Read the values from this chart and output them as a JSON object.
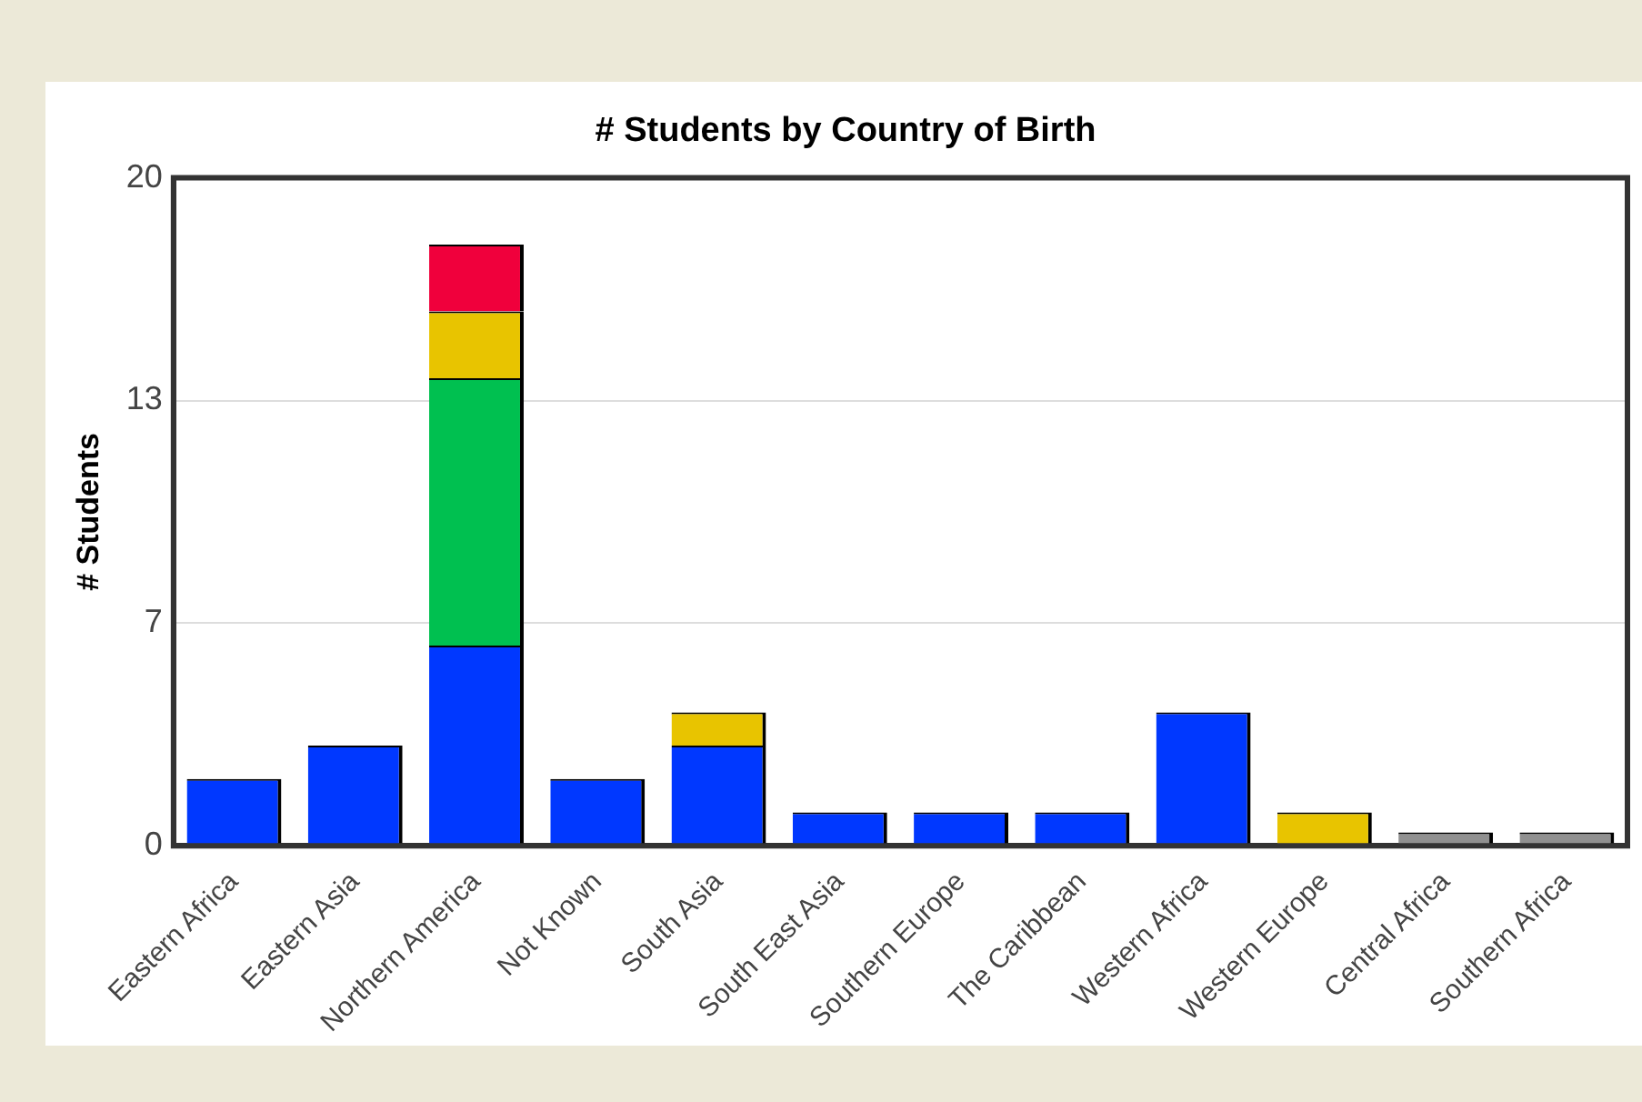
{
  "chart_data": {
    "type": "bar",
    "title": "# Students by Country of Birth",
    "ylabel": "# Students",
    "stacked": true,
    "categories": [
      "Eastern Africa",
      "Eastern Asia",
      "Northern America",
      "Not Known",
      "South Asia",
      "South East Asia",
      "Southern Europe",
      "The Caribbean",
      "Western Africa",
      "Western Europe",
      "Central Africa",
      "Southern Africa"
    ],
    "series": [
      {
        "color": "#0038ff",
        "values": [
          2,
          3,
          6,
          2,
          3,
          1,
          1,
          1,
          4,
          null,
          null,
          null
        ]
      },
      {
        "color": "#00c050",
        "values": [
          null,
          null,
          8,
          null,
          null,
          null,
          null,
          null,
          null,
          null,
          null,
          null
        ]
      },
      {
        "color": "#e8c400",
        "values": [
          null,
          null,
          2,
          null,
          1,
          null,
          null,
          null,
          null,
          1,
          null,
          null
        ]
      },
      {
        "color": "#f0003c",
        "values": [
          null,
          null,
          2,
          null,
          null,
          null,
          null,
          null,
          null,
          null,
          null,
          null
        ]
      },
      {
        "color": "#909090",
        "values": [
          null,
          null,
          null,
          null,
          null,
          null,
          null,
          null,
          null,
          null,
          0.4,
          0.4
        ]
      }
    ],
    "ylim": [
      0,
      20
    ],
    "yticks": [
      0,
      {
        "value": 6.667,
        "label": "7"
      },
      {
        "value": 13.333,
        "label": "13"
      },
      20
    ],
    "grid": "y",
    "legend": false
  }
}
